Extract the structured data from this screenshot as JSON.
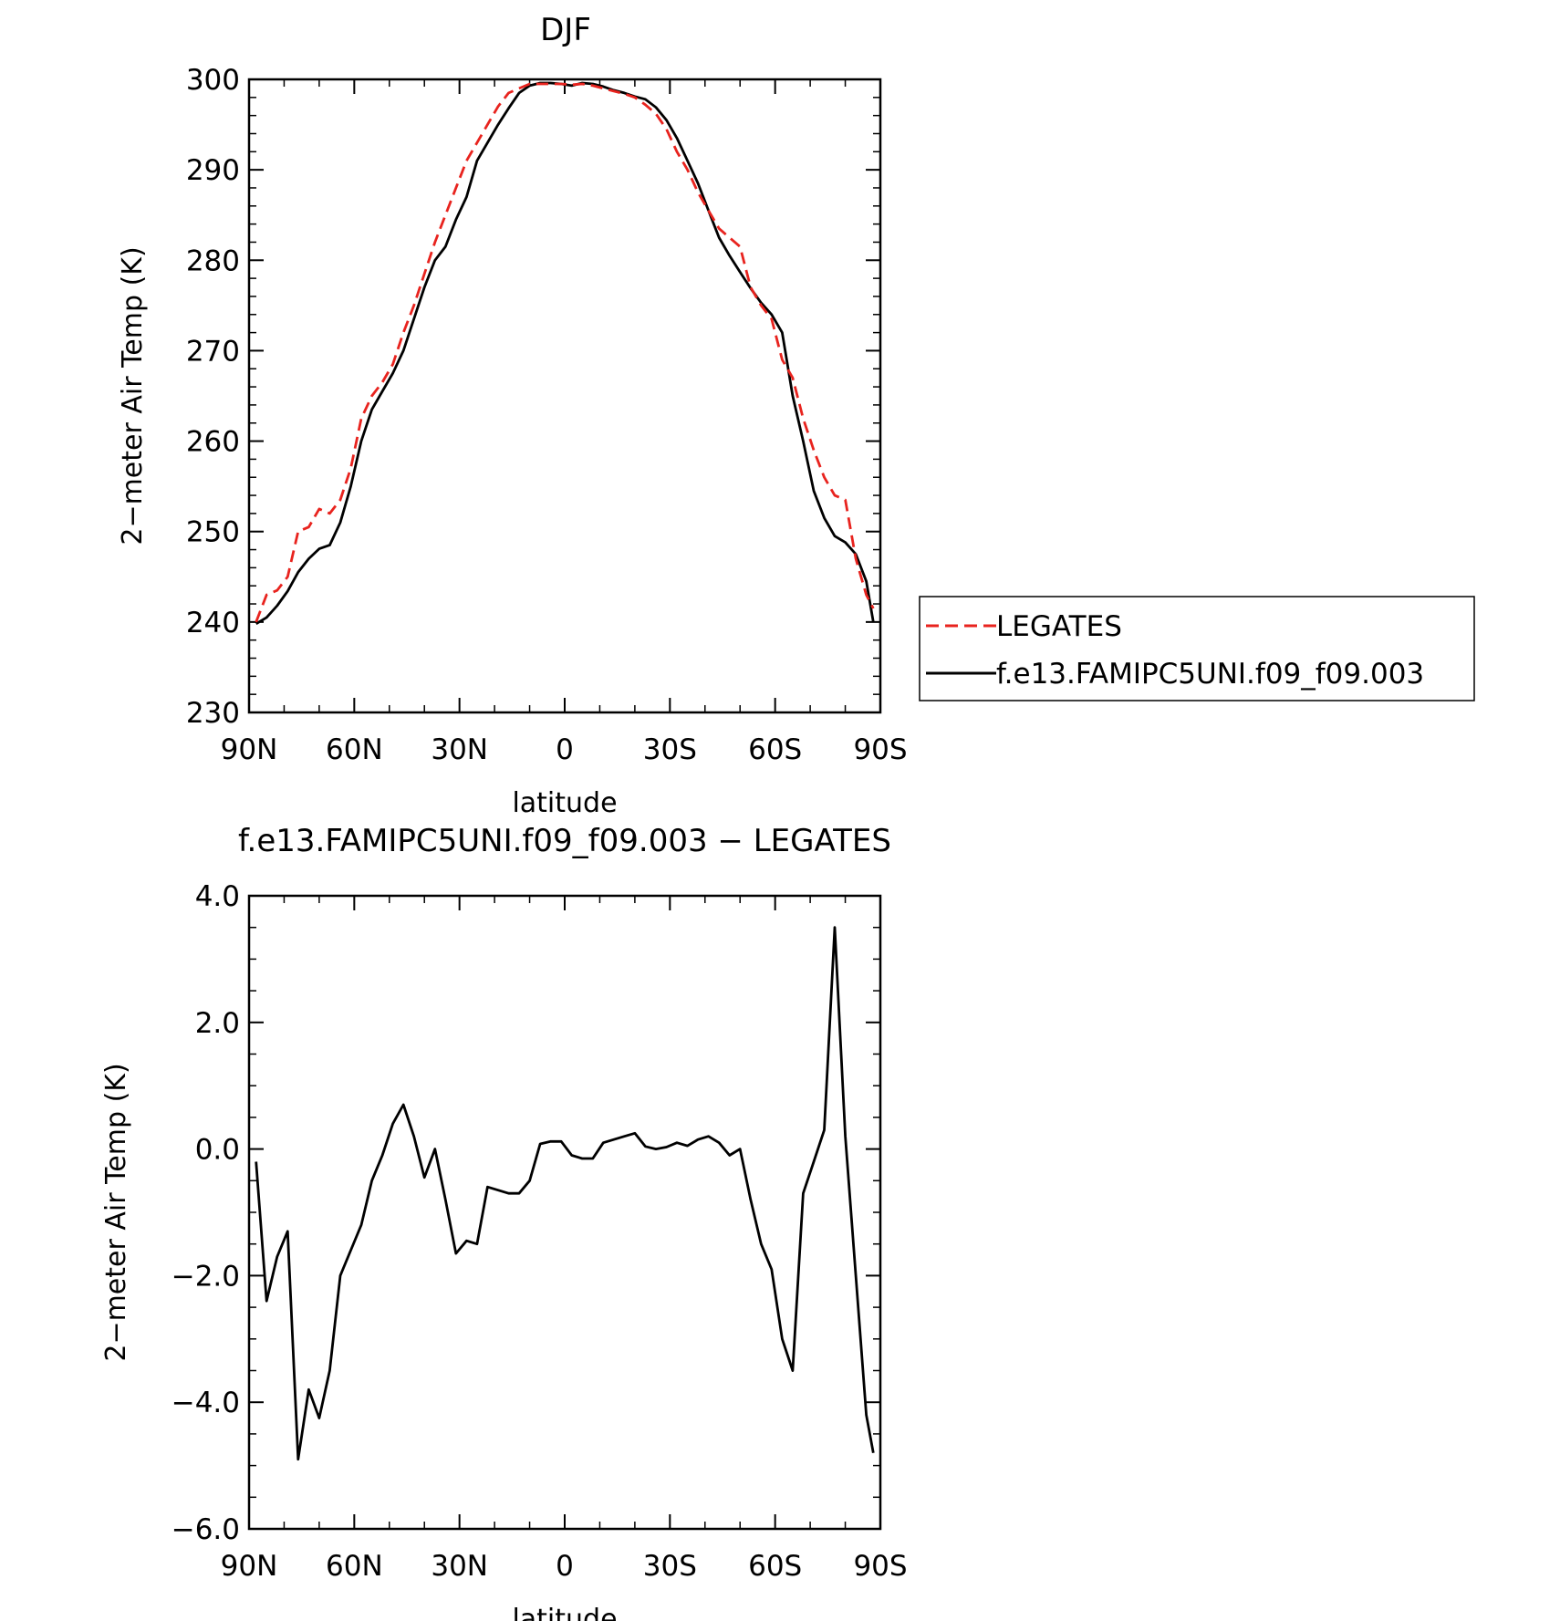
{
  "chart_data": [
    {
      "type": "line",
      "title": "DJF",
      "xlabel": "latitude",
      "ylabel": "2−meter Air Temp (K)",
      "xlim": [
        90,
        -90
      ],
      "ylim": [
        230,
        300
      ],
      "x_ticks": [
        90,
        60,
        30,
        0,
        -30,
        -60,
        -90
      ],
      "x_tick_labels": [
        "90N",
        "60N",
        "30N",
        "0",
        "30S",
        "60S",
        "90S"
      ],
      "y_ticks": [
        230,
        240,
        250,
        260,
        270,
        280,
        290,
        300
      ],
      "y_tick_labels": [
        "230",
        "240",
        "250",
        "260",
        "270",
        "280",
        "290",
        "300"
      ],
      "grid": false,
      "legend_position": "right",
      "series": [
        {
          "name": "LEGATES",
          "color": "#e8231e",
          "style": "dashed",
          "x": [
            88,
            85,
            82,
            79,
            76,
            73,
            70,
            67,
            64,
            61,
            58,
            55,
            52,
            49,
            46,
            43,
            40,
            37,
            34,
            31,
            28,
            25,
            22,
            19,
            16,
            13,
            10,
            7,
            4,
            1,
            -2,
            -5,
            -8,
            -11,
            -14,
            -17,
            -20,
            -23,
            -26,
            -29,
            -32,
            -35,
            -38,
            -41,
            -44,
            -47,
            -50,
            -53,
            -56,
            -59,
            -62,
            -65,
            -68,
            -71,
            -74,
            -77,
            -80,
            -83,
            -86,
            -88
          ],
          "y": [
            240.0,
            243.0,
            243.5,
            245.0,
            250.0,
            250.5,
            252.5,
            252.0,
            253.5,
            257.0,
            262.5,
            265.0,
            266.5,
            268.5,
            272.0,
            275.0,
            278.5,
            282.0,
            285.0,
            288.0,
            291.0,
            293.0,
            295.0,
            297.0,
            298.5,
            299.0,
            299.5,
            299.5,
            299.5,
            299.5,
            299.4,
            299.5,
            299.3,
            299.0,
            298.7,
            298.4,
            298.0,
            297.2,
            296.2,
            294.5,
            292.0,
            290.0,
            287.5,
            285.5,
            283.5,
            282.5,
            281.5,
            277.0,
            275.0,
            273.5,
            269.0,
            267.0,
            262.5,
            259.0,
            256.0,
            254.0,
            253.5,
            247.0,
            243.0,
            241.5
          ]
        },
        {
          "name": "f.e13.FAMIPC5UNI.f09_f09.003",
          "color": "#000000",
          "style": "solid",
          "x": [
            88,
            85,
            82,
            79,
            76,
            73,
            70,
            67,
            64,
            61,
            58,
            55,
            52,
            49,
            46,
            43,
            40,
            37,
            34,
            31,
            28,
            25,
            22,
            19,
            16,
            13,
            10,
            7,
            4,
            1,
            -2,
            -5,
            -8,
            -11,
            -14,
            -17,
            -20,
            -23,
            -26,
            -29,
            -32,
            -35,
            -38,
            -41,
            -44,
            -47,
            -50,
            -53,
            -56,
            -59,
            -62,
            -65,
            -68,
            -71,
            -74,
            -77,
            -80,
            -83,
            -86,
            -88
          ],
          "y": [
            239.8,
            240.5,
            241.8,
            243.4,
            245.5,
            247.0,
            248.1,
            248.5,
            251.0,
            255.0,
            260.0,
            263.5,
            265.5,
            267.5,
            270.0,
            273.5,
            277.0,
            280.0,
            281.5,
            284.5,
            287.0,
            291.0,
            293.0,
            295.0,
            296.8,
            298.5,
            299.3,
            299.6,
            299.6,
            299.5,
            299.3,
            299.6,
            299.5,
            299.2,
            298.8,
            298.5,
            298.1,
            297.8,
            296.9,
            295.5,
            293.5,
            291.0,
            288.5,
            285.5,
            282.5,
            280.5,
            278.7,
            276.9,
            275.3,
            274.0,
            272.0,
            265.0,
            260.0,
            254.5,
            251.5,
            249.5,
            248.8,
            247.5,
            244.5,
            240.0
          ]
        }
      ]
    },
    {
      "type": "line",
      "title": "f.e13.FAMIPC5UNI.f09_f09.003 − LEGATES",
      "xlabel": "latitude",
      "ylabel": "2−meter Air Temp (K)",
      "xlim": [
        90,
        -90
      ],
      "ylim": [
        -6.0,
        4.0
      ],
      "x_ticks": [
        90,
        60,
        30,
        0,
        -30,
        -60,
        -90
      ],
      "x_tick_labels": [
        "90N",
        "60N",
        "30N",
        "0",
        "30S",
        "60S",
        "90S"
      ],
      "y_ticks": [
        -6.0,
        -4.0,
        -2.0,
        0.0,
        2.0,
        4.0
      ],
      "y_tick_labels": [
        "−6.0",
        "−4.0",
        "−2.0",
        "0.0",
        "2.0",
        "4.0"
      ],
      "grid": false,
      "series": [
        {
          "color": "#000000",
          "style": "solid",
          "x": [
            88,
            85,
            82,
            79,
            76,
            73,
            70,
            67,
            64,
            61,
            58,
            55,
            52,
            49,
            46,
            43,
            40,
            37,
            34,
            31,
            28,
            25,
            22,
            19,
            16,
            13,
            10,
            7,
            4,
            1,
            -2,
            -5,
            -8,
            -11,
            -14,
            -17,
            -20,
            -23,
            -26,
            -29,
            -32,
            -35,
            -38,
            -41,
            -44,
            -47,
            -50,
            -53,
            -56,
            -59,
            -62,
            -65,
            -68,
            -71,
            -74,
            -77,
            -80,
            -83,
            -86,
            -88
          ],
          "y": [
            -0.2,
            -2.4,
            -1.7,
            -1.3,
            -4.9,
            -3.8,
            -4.25,
            -3.5,
            -2.0,
            -1.6,
            -1.2,
            -0.5,
            -0.1,
            0.4,
            0.7,
            0.2,
            -0.45,
            0.0,
            -0.8,
            -1.65,
            -1.45,
            -1.5,
            -0.6,
            -0.65,
            -0.7,
            -0.7,
            -0.5,
            0.08,
            0.12,
            0.12,
            -0.1,
            -0.15,
            -0.15,
            0.1,
            0.15,
            0.2,
            0.25,
            0.04,
            0.0,
            0.03,
            0.1,
            0.05,
            0.15,
            0.2,
            0.1,
            -0.1,
            0.0,
            -0.8,
            -1.5,
            -1.9,
            -3.0,
            -3.5,
            -0.7,
            -0.2,
            0.3,
            3.5,
            0.2,
            -2.0,
            -4.2,
            -4.8
          ]
        }
      ]
    }
  ]
}
